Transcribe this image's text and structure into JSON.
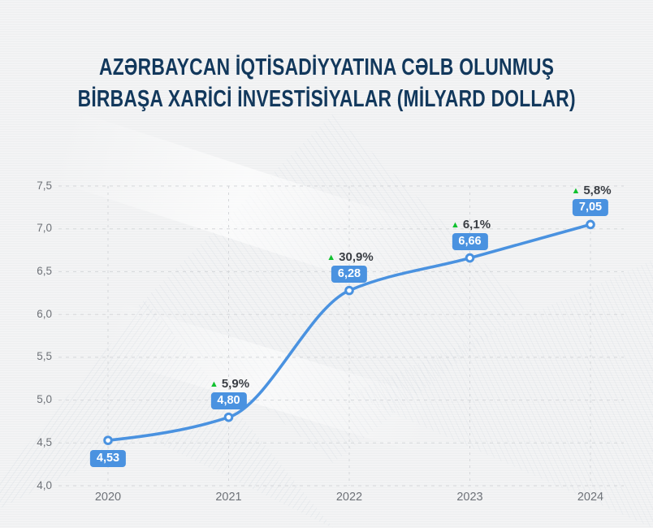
{
  "title": {
    "line1": "AZƏRBAYCAN İQTİSADİYYATINA CƏLB OLUNMUŞ",
    "line2": "BİRBAŞA XARİCİ İNVESTİSİYALAR (MİLYARD DOLLAR)"
  },
  "chart_data": {
    "type": "line",
    "title": "AZƏRBAYCAN İQTİSADİYYATINA CƏLB OLUNMUŞ BİRBAŞA XARİCİ İNVESTİSİYALAR (MİLYARD DOLLAR)",
    "categories": [
      "2020",
      "2021",
      "2022",
      "2023",
      "2024"
    ],
    "series": [
      {
        "name": "Birbaşa xarici investisiyalar (milyard dollar)",
        "values": [
          4.53,
          4.8,
          6.28,
          6.66,
          7.05
        ]
      }
    ],
    "point_labels": [
      "4,53",
      "4,80",
      "6,28",
      "6,66",
      "7,05"
    ],
    "growth_labels": [
      "",
      "5,9%",
      "30,9%",
      "6,1%",
      "5,8%"
    ],
    "growth_values": [
      null,
      5.9,
      30.9,
      6.1,
      5.8
    ],
    "ylim": [
      4.0,
      7.5
    ],
    "ytick_step": 0.5,
    "ytick_labels": [
      "4,0",
      "4,5",
      "5,0",
      "5,5",
      "6,0",
      "6,5",
      "7,0",
      "7,5"
    ],
    "xlabel": "",
    "ylabel": "",
    "legend": "none",
    "grid": "dashed horizontal and vertical",
    "marker": "open-circle",
    "label_positions": [
      "below",
      "above",
      "above",
      "above",
      "above"
    ],
    "up_triangle_icon": "▲",
    "colors": {
      "line": "#4a92e0",
      "marker_fill": "#ffffff",
      "badge_bg": "#4a92e0",
      "badge_text": "#ffffff",
      "growth_triangle": "#10c12f",
      "growth_text": "#3a3e44",
      "title": "#12385c",
      "axis_text": "#6e7278",
      "gridline": "#d5d7da",
      "background": "#f0f1f2"
    }
  }
}
